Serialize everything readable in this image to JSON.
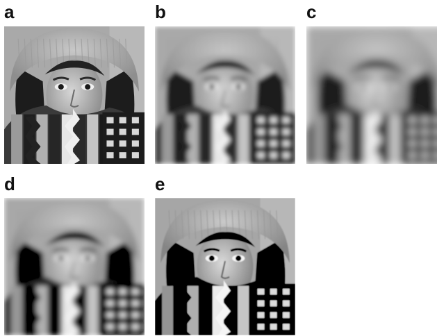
{
  "panels": [
    {
      "label": "a",
      "blur": 0,
      "contrast": 1.0
    },
    {
      "label": "b",
      "blur": 3.2,
      "contrast": 1.0
    },
    {
      "label": "c",
      "blur": 5.5,
      "contrast": 1.0
    },
    {
      "label": "d",
      "blur": 3.6,
      "contrast": 1.05
    },
    {
      "label": "e",
      "blur": 0.8,
      "contrast": 1.15
    }
  ],
  "colors": {
    "background": "#ffffff",
    "label": "#111111"
  }
}
